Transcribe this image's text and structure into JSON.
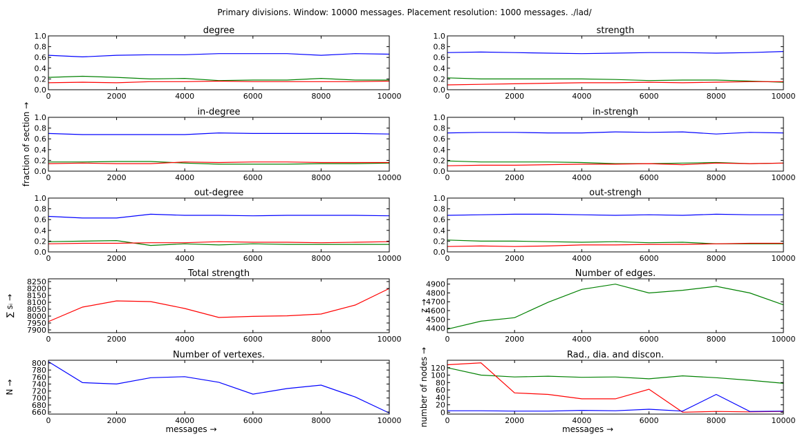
{
  "suptitle": "Primary divisions. Window: 10000 messages. Placement resolution: 1000 messages. ./lad/",
  "colors": {
    "blue": "#0000ff",
    "green": "#008000",
    "red": "#ff0000"
  },
  "chart_data": [
    {
      "type": "line",
      "title": "degree",
      "xlim": [
        0,
        10000
      ],
      "ylim": [
        0,
        1
      ],
      "xticks": [
        "0",
        "2000",
        "4000",
        "6000",
        "8000",
        "10000"
      ],
      "yticks": [
        "0.0",
        "0.2",
        "0.4",
        "0.6",
        "0.8",
        "1.0"
      ],
      "x": [
        0,
        1000,
        2000,
        3000,
        4000,
        5000,
        6000,
        7000,
        8000,
        9000,
        10000
      ],
      "series": [
        {
          "color": "blue",
          "values": [
            0.64,
            0.61,
            0.64,
            0.65,
            0.65,
            0.67,
            0.67,
            0.67,
            0.64,
            0.67,
            0.66
          ]
        },
        {
          "color": "green",
          "values": [
            0.23,
            0.25,
            0.23,
            0.2,
            0.21,
            0.17,
            0.18,
            0.18,
            0.21,
            0.18,
            0.18
          ]
        },
        {
          "color": "red",
          "values": [
            0.13,
            0.14,
            0.13,
            0.15,
            0.15,
            0.16,
            0.15,
            0.15,
            0.15,
            0.15,
            0.16
          ]
        }
      ]
    },
    {
      "type": "line",
      "title": "strength",
      "xlim": [
        0,
        10000
      ],
      "ylim": [
        0,
        1
      ],
      "xticks": [
        "0",
        "2000",
        "4000",
        "6000",
        "8000",
        "10000"
      ],
      "yticks": [
        "0.0",
        "0.2",
        "0.4",
        "0.6",
        "0.8",
        "1.0"
      ],
      "x": [
        0,
        1000,
        2000,
        3000,
        4000,
        5000,
        6000,
        7000,
        8000,
        9000,
        10000
      ],
      "series": [
        {
          "color": "blue",
          "values": [
            0.69,
            0.7,
            0.69,
            0.68,
            0.67,
            0.68,
            0.69,
            0.69,
            0.68,
            0.69,
            0.71
          ]
        },
        {
          "color": "green",
          "values": [
            0.22,
            0.2,
            0.2,
            0.2,
            0.2,
            0.19,
            0.17,
            0.18,
            0.18,
            0.16,
            0.14
          ]
        },
        {
          "color": "red",
          "values": [
            0.09,
            0.1,
            0.11,
            0.12,
            0.13,
            0.13,
            0.14,
            0.13,
            0.14,
            0.15,
            0.15
          ]
        }
      ]
    },
    {
      "type": "line",
      "title": "in-degree",
      "xlim": [
        0,
        10000
      ],
      "ylim": [
        0,
        1
      ],
      "xticks": [
        "0",
        "2000",
        "4000",
        "6000",
        "8000",
        "10000"
      ],
      "yticks": [
        "0.0",
        "0.2",
        "0.4",
        "0.6",
        "0.8",
        "1.0"
      ],
      "x": [
        0,
        1000,
        2000,
        3000,
        4000,
        5000,
        6000,
        7000,
        8000,
        9000,
        10000
      ],
      "series": [
        {
          "color": "blue",
          "values": [
            0.7,
            0.68,
            0.68,
            0.68,
            0.68,
            0.71,
            0.7,
            0.7,
            0.7,
            0.7,
            0.69
          ]
        },
        {
          "color": "green",
          "values": [
            0.17,
            0.17,
            0.18,
            0.18,
            0.15,
            0.13,
            0.13,
            0.13,
            0.14,
            0.14,
            0.15
          ]
        },
        {
          "color": "red",
          "values": [
            0.14,
            0.15,
            0.14,
            0.14,
            0.17,
            0.16,
            0.17,
            0.17,
            0.16,
            0.16,
            0.16
          ]
        }
      ]
    },
    {
      "type": "line",
      "title": "in-strengh",
      "xlim": [
        0,
        10000
      ],
      "ylim": [
        0,
        1
      ],
      "xticks": [
        "0",
        "2000",
        "4000",
        "6000",
        "8000",
        "10000"
      ],
      "yticks": [
        "0.0",
        "0.2",
        "0.4",
        "0.6",
        "0.8",
        "1.0"
      ],
      "x": [
        0,
        1000,
        2000,
        3000,
        4000,
        5000,
        6000,
        7000,
        8000,
        9000,
        10000
      ],
      "series": [
        {
          "color": "blue",
          "values": [
            0.71,
            0.72,
            0.72,
            0.71,
            0.71,
            0.73,
            0.72,
            0.73,
            0.69,
            0.72,
            0.71
          ]
        },
        {
          "color": "green",
          "values": [
            0.19,
            0.17,
            0.17,
            0.17,
            0.16,
            0.14,
            0.14,
            0.15,
            0.16,
            0.14,
            0.15
          ]
        },
        {
          "color": "red",
          "values": [
            0.1,
            0.11,
            0.11,
            0.12,
            0.13,
            0.13,
            0.14,
            0.12,
            0.15,
            0.14,
            0.15
          ]
        }
      ]
    },
    {
      "type": "line",
      "title": "out-degree",
      "xlim": [
        0,
        10000
      ],
      "ylim": [
        0,
        1
      ],
      "xticks": [
        "0",
        "2000",
        "4000",
        "6000",
        "8000",
        "10000"
      ],
      "yticks": [
        "0.0",
        "0.2",
        "0.4",
        "0.6",
        "0.8",
        "1.0"
      ],
      "x": [
        0,
        1000,
        2000,
        3000,
        4000,
        5000,
        6000,
        7000,
        8000,
        9000,
        10000
      ],
      "series": [
        {
          "color": "blue",
          "values": [
            0.66,
            0.63,
            0.63,
            0.7,
            0.68,
            0.68,
            0.67,
            0.68,
            0.68,
            0.68,
            0.67
          ]
        },
        {
          "color": "green",
          "values": [
            0.19,
            0.2,
            0.21,
            0.12,
            0.15,
            0.13,
            0.15,
            0.14,
            0.14,
            0.14,
            0.14
          ]
        },
        {
          "color": "red",
          "values": [
            0.15,
            0.16,
            0.16,
            0.17,
            0.17,
            0.19,
            0.18,
            0.18,
            0.17,
            0.18,
            0.19
          ]
        }
      ]
    },
    {
      "type": "line",
      "title": "out-strengh",
      "xlim": [
        0,
        10000
      ],
      "ylim": [
        0,
        1
      ],
      "xticks": [
        "0",
        "2000",
        "4000",
        "6000",
        "8000",
        "10000"
      ],
      "yticks": [
        "0.0",
        "0.2",
        "0.4",
        "0.6",
        "0.8",
        "1.0"
      ],
      "x": [
        0,
        1000,
        2000,
        3000,
        4000,
        5000,
        6000,
        7000,
        8000,
        9000,
        10000
      ],
      "series": [
        {
          "color": "blue",
          "values": [
            0.68,
            0.69,
            0.7,
            0.7,
            0.69,
            0.68,
            0.69,
            0.68,
            0.7,
            0.69,
            0.69
          ]
        },
        {
          "color": "green",
          "values": [
            0.22,
            0.2,
            0.2,
            0.19,
            0.18,
            0.19,
            0.17,
            0.18,
            0.15,
            0.15,
            0.15
          ]
        },
        {
          "color": "red",
          "values": [
            0.1,
            0.11,
            0.1,
            0.11,
            0.13,
            0.13,
            0.14,
            0.14,
            0.15,
            0.16,
            0.16
          ]
        }
      ]
    },
    {
      "type": "line",
      "title": "Total strength",
      "xlim": [
        0,
        10000
      ],
      "ylim": [
        7880,
        8270
      ],
      "xticks": [
        "0",
        "2000",
        "4000",
        "6000",
        "8000",
        "10000"
      ],
      "yticks": [
        "7900",
        "7950",
        "8000",
        "8050",
        "8100",
        "8150",
        "8200",
        "8250"
      ],
      "ylabel": "∑ sᵢ →",
      "x": [
        0,
        1000,
        2000,
        3000,
        4000,
        5000,
        6000,
        7000,
        8000,
        9000,
        10000
      ],
      "series": [
        {
          "color": "red",
          "values": [
            7960,
            8065,
            8110,
            8105,
            8055,
            7990,
            7998,
            8002,
            8015,
            8080,
            8200
          ]
        }
      ]
    },
    {
      "type": "line",
      "title": "Number of edges.",
      "xlim": [
        0,
        10000
      ],
      "ylim": [
        4350,
        4960
      ],
      "xticks": [
        "0",
        "2000",
        "4000",
        "6000",
        "8000",
        "10000"
      ],
      "yticks": [
        "4400",
        "4500",
        "4600",
        "4700",
        "4800",
        "4900"
      ],
      "ylabel": "z →",
      "x": [
        0,
        1000,
        2000,
        3000,
        4000,
        5000,
        6000,
        7000,
        8000,
        9000,
        10000
      ],
      "series": [
        {
          "color": "green",
          "values": [
            4390,
            4480,
            4520,
            4695,
            4840,
            4900,
            4800,
            4830,
            4875,
            4800,
            4665
          ]
        }
      ]
    },
    {
      "type": "line",
      "title": "Number of vertexes.",
      "xlim": [
        0,
        10000
      ],
      "ylim": [
        654,
        808
      ],
      "xticks": [
        "0",
        "2000",
        "4000",
        "6000",
        "8000",
        "10000"
      ],
      "yticks": [
        "660",
        "680",
        "700",
        "720",
        "740",
        "760",
        "780",
        "800"
      ],
      "ylabel": "N →",
      "xlabel": "messages →",
      "x": [
        0,
        1000,
        2000,
        3000,
        4000,
        5000,
        6000,
        7000,
        8000,
        9000,
        10000
      ],
      "series": [
        {
          "color": "blue",
          "values": [
            804,
            744,
            740,
            758,
            761,
            745,
            711,
            727,
            737,
            703,
            657
          ]
        }
      ]
    },
    {
      "type": "line",
      "title": "Rad., dia. and discon.",
      "xlim": [
        0,
        10000
      ],
      "ylim": [
        -5,
        140
      ],
      "xticks": [
        "0",
        "2000",
        "4000",
        "6000",
        "8000",
        "10000"
      ],
      "yticks": [
        "0",
        "20",
        "40",
        "60",
        "80",
        "100",
        "120"
      ],
      "ylabel": "number of nodes →",
      "xlabel": "messages →",
      "x": [
        0,
        1000,
        2000,
        3000,
        4000,
        5000,
        6000,
        7000,
        8000,
        9000,
        10000
      ],
      "series": [
        {
          "color": "green",
          "values": [
            120,
            100,
            95,
            97,
            94,
            95,
            90,
            98,
            93,
            86,
            78
          ]
        },
        {
          "color": "red",
          "values": [
            128,
            133,
            52,
            48,
            36,
            36,
            62,
            0,
            2,
            1,
            2
          ]
        },
        {
          "color": "blue",
          "values": [
            4,
            4,
            3,
            3,
            5,
            4,
            8,
            3,
            48,
            2,
            3
          ]
        }
      ]
    }
  ]
}
